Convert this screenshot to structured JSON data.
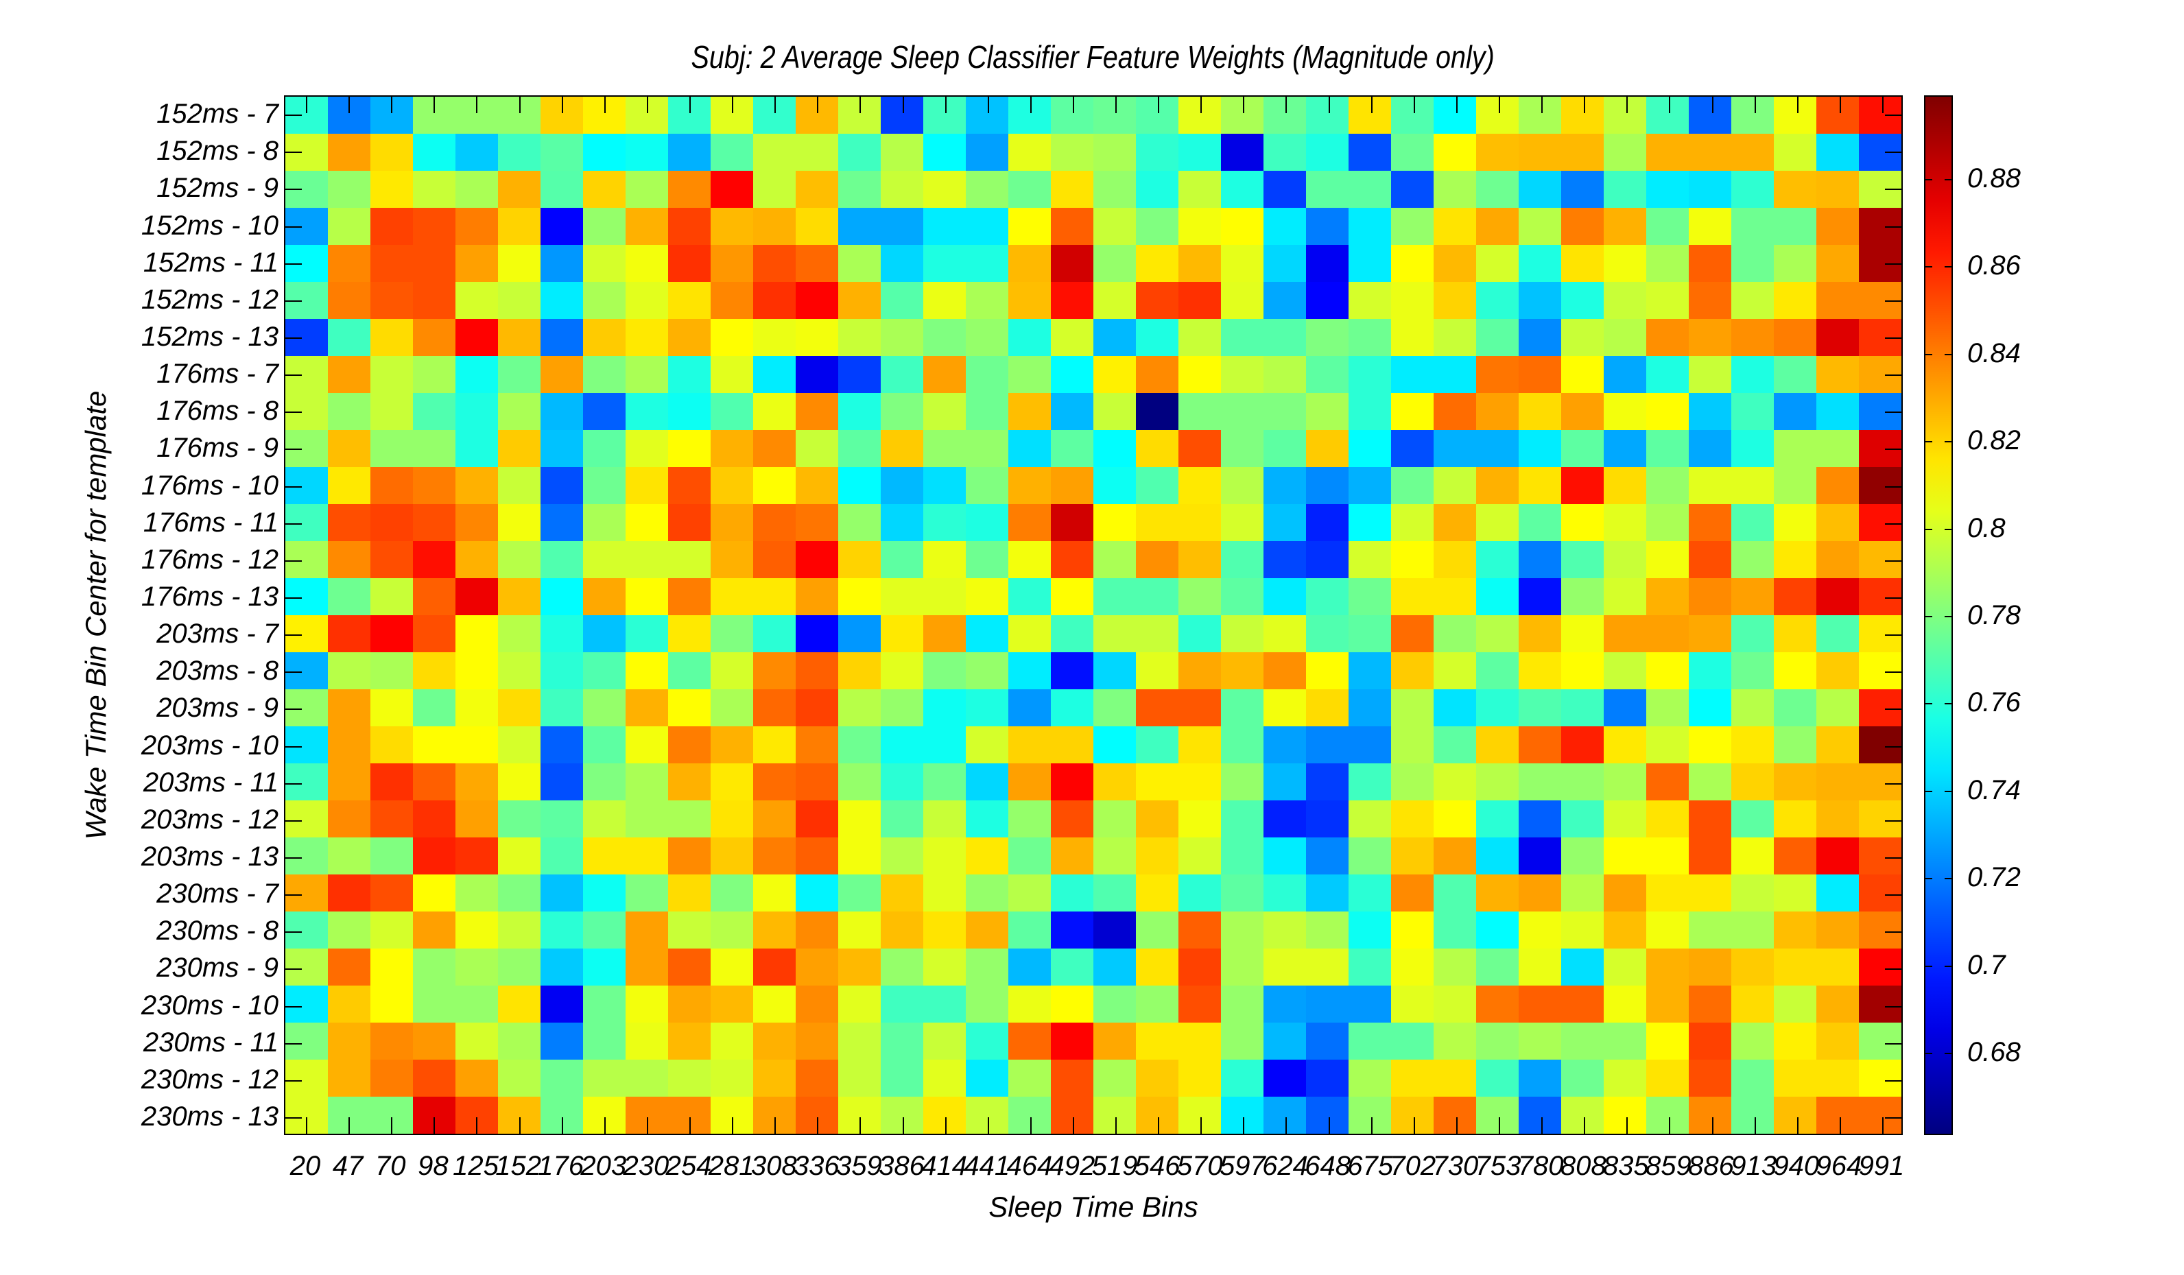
{
  "chart_data": {
    "type": "heatmap",
    "title": "Subj: 2 Average Sleep Classifier Feature Weights (Magnitude only)",
    "xlabel": "Sleep Time Bins",
    "ylabel": "Wake Time Bin Center for template",
    "colormap": "jet",
    "clim": [
      0.661,
      0.899
    ],
    "colorbar_ticks": [
      0.68,
      0.7,
      0.72,
      0.74,
      0.76,
      0.78,
      0.8,
      0.82,
      0.84,
      0.86,
      0.88
    ],
    "colorbar_tick_labels": [
      "0.68",
      "0.7",
      "0.72",
      "0.74",
      "0.76",
      "0.78",
      "0.8",
      "0.82",
      "0.84",
      "0.86",
      "0.88"
    ],
    "x": [
      "20",
      "47",
      "70",
      "98",
      "125",
      "152",
      "176",
      "203",
      "230",
      "254",
      "281",
      "308",
      "336",
      "359",
      "386",
      "414",
      "441",
      "464",
      "492",
      "519",
      "546",
      "570",
      "597",
      "624",
      "648",
      "675",
      "702",
      "730",
      "753",
      "780",
      "808",
      "835",
      "859",
      "886",
      "913",
      "940",
      "964",
      "991"
    ],
    "y": [
      "152ms - 7",
      "152ms - 8",
      "152ms - 9",
      "152ms - 10",
      "152ms - 11",
      "152ms - 12",
      "152ms - 13",
      "176ms - 7",
      "176ms - 8",
      "176ms - 9",
      "176ms - 10",
      "176ms - 11",
      "176ms - 12",
      "176ms - 13",
      "203ms - 7",
      "203ms - 8",
      "203ms - 9",
      "203ms - 10",
      "203ms - 11",
      "203ms - 12",
      "203ms - 13",
      "230ms - 7",
      "230ms - 8",
      "230ms - 9",
      "230ms - 10",
      "230ms - 11",
      "230ms - 12",
      "230ms - 13"
    ],
    "values": [
      [
        0.76,
        0.72,
        0.732,
        0.785,
        0.785,
        0.785,
        0.82,
        0.813,
        0.8,
        0.762,
        0.803,
        0.762,
        0.826,
        0.797,
        0.705,
        0.765,
        0.736,
        0.757,
        0.772,
        0.775,
        0.77,
        0.804,
        0.79,
        0.775,
        0.765,
        0.816,
        0.769,
        0.75,
        0.804,
        0.79,
        0.818,
        0.796,
        0.765,
        0.713,
        0.78,
        0.807,
        0.851,
        0.866
      ],
      [
        0.8,
        0.832,
        0.818,
        0.753,
        0.738,
        0.765,
        0.771,
        0.75,
        0.753,
        0.732,
        0.771,
        0.797,
        0.797,
        0.765,
        0.793,
        0.75,
        0.728,
        0.804,
        0.793,
        0.79,
        0.761,
        0.757,
        0.685,
        0.765,
        0.757,
        0.709,
        0.775,
        0.81,
        0.825,
        0.826,
        0.826,
        0.79,
        0.828,
        0.828,
        0.828,
        0.8,
        0.743,
        0.709
      ],
      [
        0.775,
        0.785,
        0.815,
        0.797,
        0.79,
        0.828,
        0.77,
        0.82,
        0.79,
        0.837,
        0.869,
        0.797,
        0.825,
        0.776,
        0.797,
        0.803,
        0.785,
        0.776,
        0.816,
        0.785,
        0.757,
        0.797,
        0.757,
        0.705,
        0.772,
        0.772,
        0.709,
        0.79,
        0.776,
        0.741,
        0.72,
        0.765,
        0.746,
        0.744,
        0.761,
        0.825,
        0.826,
        0.797
      ],
      [
        0.728,
        0.793,
        0.854,
        0.851,
        0.84,
        0.82,
        0.691,
        0.785,
        0.828,
        0.854,
        0.826,
        0.828,
        0.818,
        0.73,
        0.73,
        0.746,
        0.746,
        0.81,
        0.847,
        0.797,
        0.78,
        0.807,
        0.81,
        0.746,
        0.72,
        0.746,
        0.785,
        0.816,
        0.83,
        0.793,
        0.84,
        0.828,
        0.776,
        0.807,
        0.776,
        0.776,
        0.836,
        0.889
      ],
      [
        0.75,
        0.838,
        0.851,
        0.851,
        0.832,
        0.807,
        0.726,
        0.8,
        0.807,
        0.858,
        0.834,
        0.851,
        0.845,
        0.79,
        0.741,
        0.757,
        0.757,
        0.826,
        0.88,
        0.785,
        0.815,
        0.826,
        0.804,
        0.741,
        0.688,
        0.746,
        0.81,
        0.826,
        0.8,
        0.757,
        0.816,
        0.807,
        0.79,
        0.847,
        0.776,
        0.79,
        0.83,
        0.889
      ],
      [
        0.77,
        0.84,
        0.849,
        0.851,
        0.8,
        0.797,
        0.746,
        0.79,
        0.803,
        0.816,
        0.838,
        0.858,
        0.869,
        0.828,
        0.77,
        0.805,
        0.79,
        0.825,
        0.866,
        0.8,
        0.854,
        0.858,
        0.803,
        0.73,
        0.691,
        0.8,
        0.805,
        0.82,
        0.76,
        0.736,
        0.757,
        0.797,
        0.8,
        0.844,
        0.797,
        0.815,
        0.837,
        0.837
      ],
      [
        0.705,
        0.765,
        0.818,
        0.837,
        0.869,
        0.826,
        0.717,
        0.822,
        0.815,
        0.828,
        0.81,
        0.805,
        0.807,
        0.797,
        0.79,
        0.78,
        0.785,
        0.757,
        0.8,
        0.734,
        0.757,
        0.797,
        0.77,
        0.77,
        0.78,
        0.776,
        0.805,
        0.797,
        0.772,
        0.723,
        0.797,
        0.793,
        0.836,
        0.832,
        0.836,
        0.84,
        0.877,
        0.858
      ],
      [
        0.797,
        0.832,
        0.797,
        0.79,
        0.753,
        0.776,
        0.832,
        0.78,
        0.79,
        0.757,
        0.803,
        0.746,
        0.687,
        0.705,
        0.765,
        0.832,
        0.776,
        0.785,
        0.75,
        0.813,
        0.837,
        0.81,
        0.797,
        0.793,
        0.772,
        0.76,
        0.746,
        0.746,
        0.842,
        0.844,
        0.81,
        0.73,
        0.757,
        0.797,
        0.757,
        0.772,
        0.826,
        0.83
      ],
      [
        0.797,
        0.785,
        0.797,
        0.769,
        0.757,
        0.79,
        0.734,
        0.713,
        0.757,
        0.753,
        0.769,
        0.805,
        0.837,
        0.757,
        0.78,
        0.797,
        0.776,
        0.825,
        0.734,
        0.797,
        0.661,
        0.78,
        0.78,
        0.78,
        0.79,
        0.76,
        0.81,
        0.844,
        0.832,
        0.818,
        0.832,
        0.807,
        0.81,
        0.738,
        0.765,
        0.726,
        0.743,
        0.72
      ],
      [
        0.785,
        0.825,
        0.785,
        0.785,
        0.757,
        0.822,
        0.736,
        0.772,
        0.803,
        0.81,
        0.828,
        0.837,
        0.797,
        0.772,
        0.822,
        0.785,
        0.785,
        0.743,
        0.772,
        0.75,
        0.818,
        0.851,
        0.78,
        0.772,
        0.822,
        0.75,
        0.709,
        0.732,
        0.732,
        0.746,
        0.772,
        0.73,
        0.772,
        0.73,
        0.757,
        0.79,
        0.79,
        0.877
      ],
      [
        0.741,
        0.815,
        0.844,
        0.84,
        0.828,
        0.797,
        0.709,
        0.776,
        0.816,
        0.851,
        0.822,
        0.81,
        0.826,
        0.75,
        0.734,
        0.743,
        0.78,
        0.828,
        0.832,
        0.753,
        0.769,
        0.815,
        0.793,
        0.732,
        0.723,
        0.732,
        0.776,
        0.797,
        0.828,
        0.816,
        0.866,
        0.818,
        0.785,
        0.803,
        0.803,
        0.79,
        0.837,
        0.895
      ],
      [
        0.765,
        0.851,
        0.854,
        0.851,
        0.838,
        0.807,
        0.717,
        0.79,
        0.81,
        0.854,
        0.83,
        0.845,
        0.842,
        0.785,
        0.741,
        0.76,
        0.757,
        0.84,
        0.88,
        0.81,
        0.816,
        0.816,
        0.8,
        0.736,
        0.698,
        0.75,
        0.8,
        0.828,
        0.8,
        0.772,
        0.81,
        0.803,
        0.79,
        0.844,
        0.769,
        0.807,
        0.825,
        0.866
      ],
      [
        0.79,
        0.837,
        0.851,
        0.866,
        0.828,
        0.793,
        0.769,
        0.8,
        0.8,
        0.8,
        0.828,
        0.847,
        0.869,
        0.82,
        0.772,
        0.805,
        0.776,
        0.807,
        0.854,
        0.79,
        0.836,
        0.825,
        0.769,
        0.707,
        0.702,
        0.8,
        0.81,
        0.818,
        0.76,
        0.72,
        0.769,
        0.797,
        0.807,
        0.851,
        0.785,
        0.815,
        0.832,
        0.826
      ],
      [
        0.75,
        0.776,
        0.797,
        0.847,
        0.873,
        0.825,
        0.75,
        0.83,
        0.81,
        0.84,
        0.815,
        0.815,
        0.832,
        0.81,
        0.803,
        0.803,
        0.807,
        0.76,
        0.81,
        0.769,
        0.769,
        0.785,
        0.772,
        0.746,
        0.765,
        0.776,
        0.815,
        0.815,
        0.752,
        0.694,
        0.785,
        0.8,
        0.828,
        0.837,
        0.832,
        0.854,
        0.875,
        0.858
      ],
      [
        0.813,
        0.858,
        0.869,
        0.851,
        0.81,
        0.793,
        0.757,
        0.736,
        0.76,
        0.815,
        0.78,
        0.76,
        0.691,
        0.726,
        0.815,
        0.832,
        0.746,
        0.803,
        0.765,
        0.797,
        0.797,
        0.76,
        0.797,
        0.803,
        0.769,
        0.772,
        0.844,
        0.785,
        0.793,
        0.826,
        0.807,
        0.832,
        0.832,
        0.83,
        0.769,
        0.818,
        0.769,
        0.815
      ],
      [
        0.732,
        0.793,
        0.79,
        0.818,
        0.81,
        0.797,
        0.76,
        0.769,
        0.81,
        0.772,
        0.8,
        0.837,
        0.847,
        0.82,
        0.803,
        0.78,
        0.785,
        0.746,
        0.694,
        0.741,
        0.803,
        0.83,
        0.826,
        0.836,
        0.81,
        0.734,
        0.822,
        0.8,
        0.772,
        0.815,
        0.81,
        0.797,
        0.81,
        0.757,
        0.776,
        0.81,
        0.822,
        0.81
      ],
      [
        0.785,
        0.832,
        0.807,
        0.776,
        0.807,
        0.818,
        0.765,
        0.785,
        0.828,
        0.81,
        0.79,
        0.845,
        0.854,
        0.793,
        0.785,
        0.753,
        0.757,
        0.726,
        0.757,
        0.78,
        0.849,
        0.849,
        0.772,
        0.807,
        0.818,
        0.73,
        0.793,
        0.744,
        0.76,
        0.769,
        0.765,
        0.72,
        0.79,
        0.75,
        0.793,
        0.776,
        0.793,
        0.862
      ],
      [
        0.744,
        0.832,
        0.818,
        0.81,
        0.81,
        0.8,
        0.713,
        0.772,
        0.807,
        0.84,
        0.828,
        0.815,
        0.84,
        0.776,
        0.753,
        0.753,
        0.8,
        0.82,
        0.82,
        0.75,
        0.765,
        0.816,
        0.772,
        0.728,
        0.722,
        0.722,
        0.793,
        0.772,
        0.82,
        0.845,
        0.862,
        0.815,
        0.8,
        0.81,
        0.815,
        0.785,
        0.822,
        0.899
      ],
      [
        0.765,
        0.832,
        0.858,
        0.847,
        0.83,
        0.807,
        0.709,
        0.78,
        0.79,
        0.828,
        0.815,
        0.844,
        0.847,
        0.785,
        0.76,
        0.776,
        0.741,
        0.832,
        0.869,
        0.82,
        0.813,
        0.813,
        0.785,
        0.734,
        0.705,
        0.765,
        0.79,
        0.8,
        0.793,
        0.785,
        0.785,
        0.79,
        0.845,
        0.79,
        0.82,
        0.826,
        0.828,
        0.828
      ],
      [
        0.8,
        0.837,
        0.851,
        0.858,
        0.832,
        0.776,
        0.772,
        0.797,
        0.79,
        0.79,
        0.816,
        0.832,
        0.858,
        0.807,
        0.772,
        0.797,
        0.757,
        0.785,
        0.851,
        0.79,
        0.825,
        0.807,
        0.769,
        0.698,
        0.702,
        0.797,
        0.816,
        0.81,
        0.76,
        0.713,
        0.765,
        0.8,
        0.816,
        0.851,
        0.772,
        0.816,
        0.826,
        0.82
      ],
      [
        0.78,
        0.79,
        0.78,
        0.862,
        0.858,
        0.803,
        0.769,
        0.815,
        0.815,
        0.837,
        0.822,
        0.84,
        0.847,
        0.807,
        0.793,
        0.803,
        0.815,
        0.776,
        0.828,
        0.793,
        0.818,
        0.8,
        0.769,
        0.746,
        0.722,
        0.78,
        0.822,
        0.832,
        0.744,
        0.687,
        0.785,
        0.81,
        0.81,
        0.851,
        0.807,
        0.847,
        0.871,
        0.851
      ],
      [
        0.83,
        0.858,
        0.851,
        0.81,
        0.79,
        0.78,
        0.736,
        0.753,
        0.78,
        0.818,
        0.78,
        0.807,
        0.748,
        0.776,
        0.822,
        0.803,
        0.785,
        0.793,
        0.76,
        0.769,
        0.815,
        0.76,
        0.772,
        0.76,
        0.738,
        0.76,
        0.837,
        0.769,
        0.828,
        0.832,
        0.793,
        0.832,
        0.815,
        0.815,
        0.797,
        0.8,
        0.746,
        0.854
      ],
      [
        0.769,
        0.79,
        0.8,
        0.832,
        0.807,
        0.797,
        0.76,
        0.772,
        0.832,
        0.797,
        0.793,
        0.826,
        0.837,
        0.805,
        0.825,
        0.816,
        0.828,
        0.772,
        0.694,
        0.68,
        0.785,
        0.847,
        0.79,
        0.797,
        0.79,
        0.753,
        0.81,
        0.769,
        0.75,
        0.807,
        0.803,
        0.825,
        0.807,
        0.79,
        0.79,
        0.825,
        0.83,
        0.84
      ],
      [
        0.793,
        0.844,
        0.81,
        0.785,
        0.79,
        0.785,
        0.738,
        0.753,
        0.832,
        0.847,
        0.807,
        0.856,
        0.832,
        0.826,
        0.785,
        0.8,
        0.785,
        0.734,
        0.765,
        0.738,
        0.816,
        0.854,
        0.79,
        0.803,
        0.803,
        0.765,
        0.807,
        0.793,
        0.776,
        0.805,
        0.743,
        0.8,
        0.828,
        0.83,
        0.822,
        0.818,
        0.818,
        0.869
      ],
      [
        0.746,
        0.822,
        0.81,
        0.785,
        0.785,
        0.816,
        0.688,
        0.776,
        0.807,
        0.83,
        0.826,
        0.807,
        0.837,
        0.803,
        0.765,
        0.765,
        0.785,
        0.805,
        0.81,
        0.78,
        0.785,
        0.851,
        0.785,
        0.728,
        0.726,
        0.726,
        0.803,
        0.8,
        0.842,
        0.847,
        0.847,
        0.807,
        0.828,
        0.844,
        0.818,
        0.797,
        0.828,
        0.891
      ],
      [
        0.78,
        0.828,
        0.837,
        0.834,
        0.8,
        0.79,
        0.72,
        0.776,
        0.805,
        0.826,
        0.803,
        0.828,
        0.834,
        0.797,
        0.772,
        0.797,
        0.76,
        0.845,
        0.869,
        0.83,
        0.815,
        0.815,
        0.785,
        0.734,
        0.717,
        0.772,
        0.772,
        0.793,
        0.785,
        0.79,
        0.785,
        0.785,
        0.81,
        0.854,
        0.79,
        0.813,
        0.822,
        0.785
      ],
      [
        0.802,
        0.828,
        0.84,
        0.851,
        0.832,
        0.793,
        0.776,
        0.793,
        0.793,
        0.797,
        0.8,
        0.825,
        0.844,
        0.797,
        0.772,
        0.803,
        0.746,
        0.79,
        0.851,
        0.79,
        0.822,
        0.815,
        0.76,
        0.69,
        0.702,
        0.79,
        0.816,
        0.816,
        0.765,
        0.728,
        0.776,
        0.8,
        0.816,
        0.851,
        0.776,
        0.816,
        0.816,
        0.81
      ],
      [
        0.802,
        0.78,
        0.78,
        0.875,
        0.854,
        0.825,
        0.776,
        0.807,
        0.837,
        0.837,
        0.807,
        0.832,
        0.847,
        0.803,
        0.793,
        0.815,
        0.797,
        0.78,
        0.851,
        0.797,
        0.825,
        0.803,
        0.746,
        0.73,
        0.713,
        0.785,
        0.822,
        0.844,
        0.785,
        0.713,
        0.797,
        0.81,
        0.785,
        0.837,
        0.776,
        0.825,
        0.844,
        0.844
      ]
    ]
  }
}
